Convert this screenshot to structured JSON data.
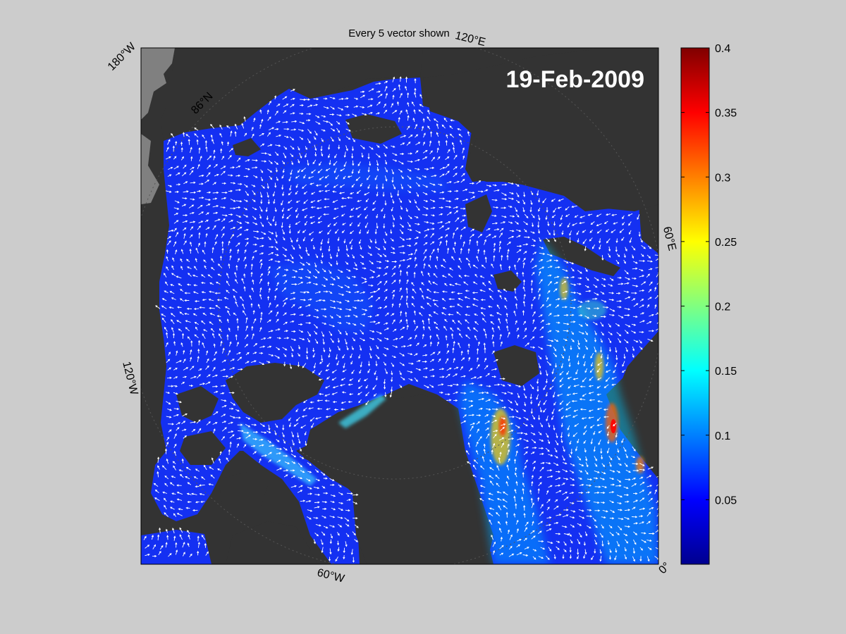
{
  "figure": {
    "title": "Every 5 vector shown",
    "date_label": "19-Feb-2009"
  },
  "map": {
    "projection": "polar-stereographic",
    "longitude_labels": [
      {
        "id": "lon-180w",
        "text": "180°W"
      },
      {
        "id": "lon-120e",
        "text": "120°E"
      },
      {
        "id": "lon-60e",
        "text": "60°E"
      },
      {
        "id": "lon-0",
        "text": "0°"
      },
      {
        "id": "lon-60w",
        "text": "60°W"
      },
      {
        "id": "lon-120w",
        "text": "120°W"
      }
    ],
    "latitude_labels": [
      {
        "id": "lat-86n",
        "text": "86°N"
      }
    ],
    "colors": {
      "land": "#333333",
      "outside_grid_land": "#808080",
      "ice_low": "#0020ff",
      "vector": "#ffffff"
    }
  },
  "colorbar": {
    "colormap": "jet",
    "range": [
      0,
      0.4
    ],
    "ticks": [
      {
        "value": 0.4,
        "label": "0.4"
      },
      {
        "value": 0.35,
        "label": "0.35"
      },
      {
        "value": 0.3,
        "label": "0.3"
      },
      {
        "value": 0.25,
        "label": "0.25"
      },
      {
        "value": 0.2,
        "label": "0.2"
      },
      {
        "value": 0.15,
        "label": "0.15"
      },
      {
        "value": 0.1,
        "label": "0.1"
      },
      {
        "value": 0.05,
        "label": "0.05"
      }
    ]
  }
}
